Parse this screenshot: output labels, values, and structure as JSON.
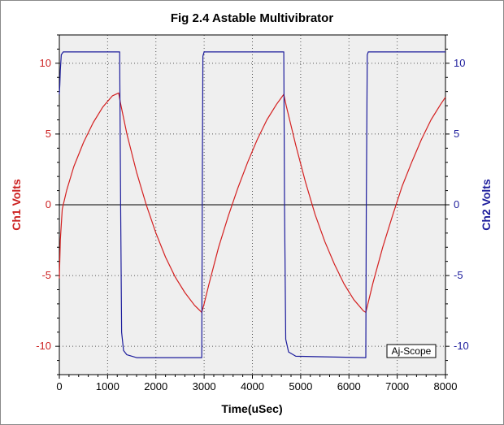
{
  "chart_data": {
    "type": "line",
    "title": "Fig 2.4 Astable Multivibrator",
    "xlabel": "Time(uSec)",
    "ylabel_left": "Ch1 Volts",
    "ylabel_right": "Ch2 Volts",
    "xlim": [
      0,
      8000
    ],
    "ylim": [
      -12,
      12
    ],
    "x_ticks": [
      0,
      1000,
      2000,
      3000,
      4000,
      5000,
      6000,
      7000,
      8000
    ],
    "y_ticks": [
      10,
      5,
      0,
      -5,
      -10
    ],
    "grid": true,
    "plot_background": "#efefef",
    "zero_line": true,
    "watermark": "Aj-Scope",
    "series": [
      {
        "axis": "left",
        "color": "#d42020",
        "values": [
          [
            0,
            -5.2
          ],
          [
            20,
            -2.5
          ],
          [
            60,
            -0.3
          ],
          [
            150,
            1.0
          ],
          [
            300,
            2.7
          ],
          [
            500,
            4.4
          ],
          [
            700,
            5.8
          ],
          [
            900,
            6.9
          ],
          [
            1100,
            7.7
          ],
          [
            1230,
            7.9
          ],
          [
            1260,
            7.3
          ],
          [
            1400,
            5.0
          ],
          [
            1600,
            2.3
          ],
          [
            1800,
            0.0
          ],
          [
            2000,
            -2.0
          ],
          [
            2200,
            -3.7
          ],
          [
            2400,
            -5.1
          ],
          [
            2600,
            -6.2
          ],
          [
            2800,
            -7.1
          ],
          [
            2950,
            -7.6
          ],
          [
            3000,
            -7.0
          ],
          [
            3100,
            -5.6
          ],
          [
            3300,
            -3.0
          ],
          [
            3500,
            -0.8
          ],
          [
            3700,
            1.2
          ],
          [
            3900,
            3.0
          ],
          [
            4100,
            4.6
          ],
          [
            4300,
            6.0
          ],
          [
            4500,
            7.1
          ],
          [
            4650,
            7.8
          ],
          [
            4700,
            7.0
          ],
          [
            4900,
            4.2
          ],
          [
            5100,
            1.6
          ],
          [
            5300,
            -0.7
          ],
          [
            5500,
            -2.6
          ],
          [
            5700,
            -4.2
          ],
          [
            5900,
            -5.6
          ],
          [
            6100,
            -6.7
          ],
          [
            6300,
            -7.5
          ],
          [
            6350,
            -7.6
          ],
          [
            6400,
            -6.9
          ],
          [
            6500,
            -5.5
          ],
          [
            6700,
            -3.0
          ],
          [
            6900,
            -0.8
          ],
          [
            7100,
            1.3
          ],
          [
            7300,
            3.0
          ],
          [
            7500,
            4.6
          ],
          [
            7700,
            6.0
          ],
          [
            7900,
            7.1
          ],
          [
            8000,
            7.6
          ]
        ]
      },
      {
        "axis": "right",
        "color": "#1c1c9c",
        "values": [
          [
            0,
            7.8
          ],
          [
            10,
            8.5
          ],
          [
            20,
            9.5
          ],
          [
            40,
            10.6
          ],
          [
            80,
            10.8
          ],
          [
            1250,
            10.8
          ],
          [
            1270,
            0.0
          ],
          [
            1290,
            -9.0
          ],
          [
            1330,
            -10.3
          ],
          [
            1400,
            -10.6
          ],
          [
            1600,
            -10.8
          ],
          [
            2950,
            -10.8
          ],
          [
            2960,
            0.0
          ],
          [
            2975,
            10.5
          ],
          [
            3000,
            10.8
          ],
          [
            4650,
            10.8
          ],
          [
            4665,
            0.0
          ],
          [
            4690,
            -9.5
          ],
          [
            4750,
            -10.4
          ],
          [
            4900,
            -10.7
          ],
          [
            6350,
            -10.8
          ],
          [
            6360,
            0.0
          ],
          [
            6380,
            10.6
          ],
          [
            6400,
            10.8
          ],
          [
            8000,
            10.8
          ]
        ]
      }
    ]
  }
}
